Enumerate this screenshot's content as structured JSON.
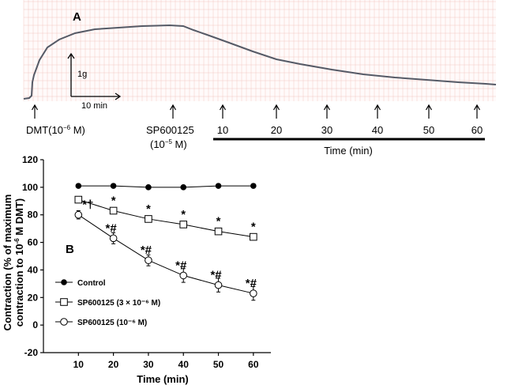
{
  "panel_a": {
    "label": "A",
    "scale_bar": {
      "vertical_label": "1g",
      "horizontal_label": "10 min"
    },
    "markers": {
      "dmt": {
        "name": "DMT",
        "conc_open": "(10",
        "conc_exp": "−6",
        "conc_close": " M)"
      },
      "sp": {
        "name": "SP600125",
        "conc_open": "(10",
        "conc_exp": "−5",
        "conc_close": " M)"
      },
      "timepoints": [
        "10",
        "20",
        "30",
        "40",
        "50",
        "60"
      ]
    },
    "time_axis_label": "Time (min)",
    "trace_color": "#555a66",
    "grid_color": "#f2c8c4"
  },
  "chart_data": {
    "type": "line",
    "panel_label": "B",
    "x": [
      10,
      20,
      30,
      40,
      50,
      60
    ],
    "xlabel": "Time (min)",
    "ylabel_line1": "Contraction (% of maximum",
    "ylabel_line2": "contraction to 10",
    "ylabel_exp": "-6",
    "ylabel_line2_end": " M DMT)",
    "ylim": [
      -20,
      120
    ],
    "yticks": [
      -20,
      0,
      20,
      40,
      60,
      80,
      100,
      120
    ],
    "xticks": [
      10,
      20,
      30,
      40,
      50,
      60
    ],
    "series": [
      {
        "name": "Control",
        "legend": "Control",
        "marker": "filled-circle",
        "values": [
          101,
          101,
          100,
          100,
          101,
          101
        ],
        "errors": [
          1,
          1,
          1,
          1,
          1,
          1
        ],
        "annotations": []
      },
      {
        "name": "SP600125 3e-6",
        "legend": "SP600125 (3 × 10⁻⁶ M)",
        "marker": "open-square",
        "values": [
          91,
          83,
          77,
          73,
          68,
          64
        ],
        "errors": [
          2,
          2,
          2,
          2,
          2,
          2
        ],
        "annotations": [
          "",
          "*",
          "*",
          "*",
          "*",
          "*"
        ]
      },
      {
        "name": "SP600125 1e-6",
        "legend": "SP600125 (10⁻⁶ M)",
        "marker": "open-circle",
        "values": [
          80,
          63,
          47,
          36,
          29,
          23
        ],
        "errors": [
          3,
          4,
          4,
          5,
          5,
          5
        ],
        "annotations": [
          "*†",
          "*#",
          "*#",
          "*#",
          "*#",
          "*#"
        ]
      }
    ]
  }
}
